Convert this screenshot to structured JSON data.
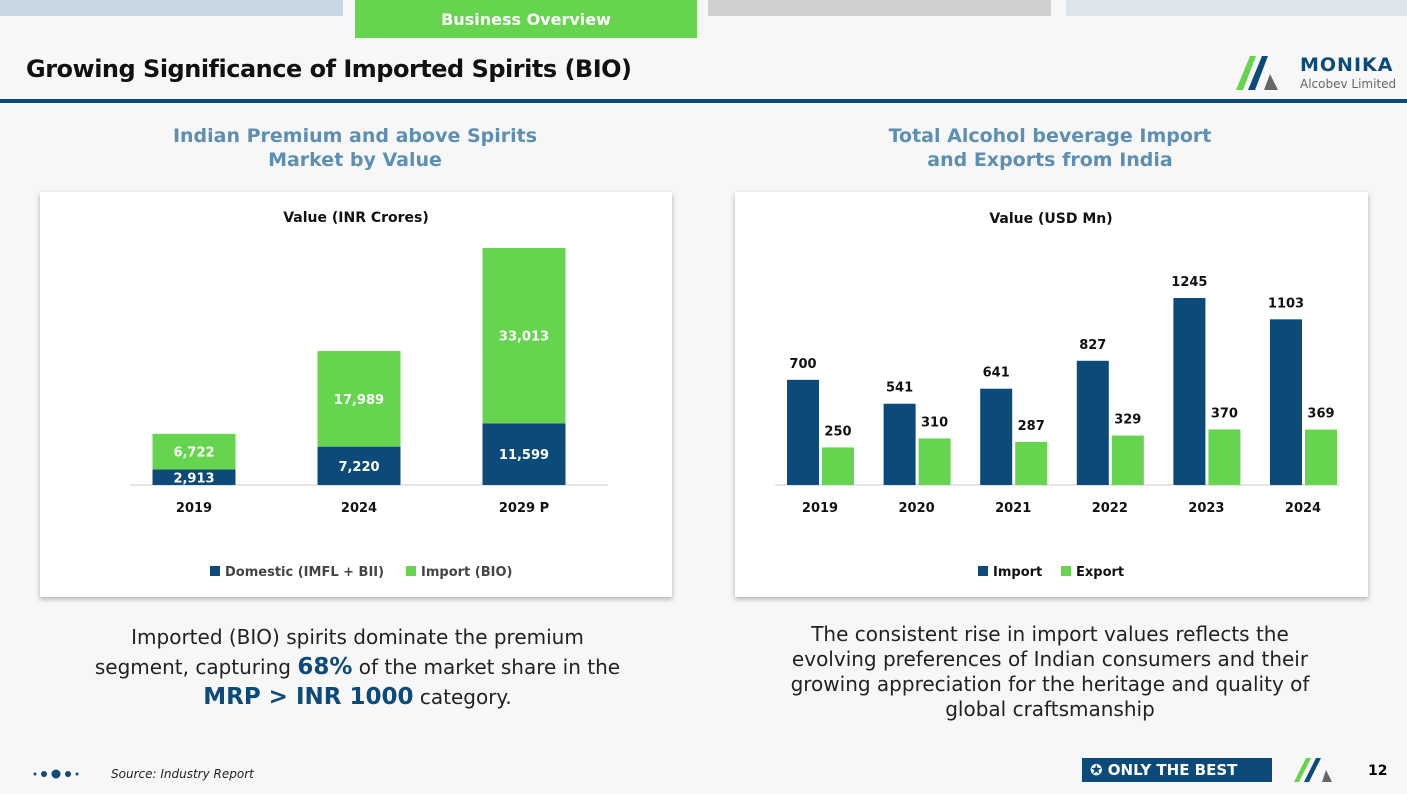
{
  "header": {
    "tab_label": "Business Overview",
    "title": "Growing Significance of Imported Spirits (BIO)",
    "logo_name": "MONIKA",
    "logo_sub": "Alcobev Limited"
  },
  "left": {
    "subtitle1": "Indian Premium and above Spirits",
    "subtitle2": "Market by Value",
    "caption_a": "Imported (BIO) spirits dominate the premium segment, capturing ",
    "caption_hl1": "68%",
    "caption_b": " of the market share in the ",
    "caption_hl2": "MRP > INR 1000",
    "caption_c": " category."
  },
  "right": {
    "subtitle1": "Total Alcohol beverage Import",
    "subtitle2": "and Exports from India",
    "caption": "The consistent rise in import values reflects the evolving preferences of Indian consumers and their growing appreciation for the heritage and quality of global craftsmanship"
  },
  "footer": {
    "source": "Source: Industry Report",
    "badge": "ONLY THE BEST",
    "page": "12"
  },
  "colors": {
    "navy": "#0c4a7a",
    "green": "#66d44e"
  },
  "chart_data": [
    {
      "type": "bar",
      "stacked": true,
      "title": "Value (INR Crores)",
      "categories": [
        "2019",
        "2024",
        "2029 P"
      ],
      "series": [
        {
          "name": "Domestic (IMFL + BII)",
          "color": "#0c4a7a",
          "values": [
            2913,
            7220,
            11599
          ],
          "labels": [
            "2,913",
            "7,220",
            "11,599"
          ]
        },
        {
          "name": "Import (BIO)",
          "color": "#66d44e",
          "values": [
            6722,
            17989,
            33013
          ],
          "labels": [
            "6,722",
            "17,989",
            "33,013"
          ]
        }
      ],
      "legend": "bottom"
    },
    {
      "type": "bar",
      "stacked": false,
      "title": "Value (USD Mn)",
      "categories": [
        "2019",
        "2020",
        "2021",
        "2022",
        "2023",
        "2024"
      ],
      "series": [
        {
          "name": "Import",
          "color": "#0c4a7a",
          "values": [
            700,
            541,
            641,
            827,
            1245,
            1103
          ]
        },
        {
          "name": "Export",
          "color": "#66d44e",
          "values": [
            250,
            310,
            287,
            329,
            370,
            369
          ]
        }
      ],
      "legend": "bottom"
    }
  ]
}
